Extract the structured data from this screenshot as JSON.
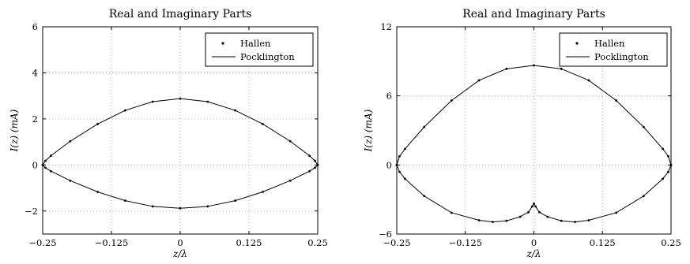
{
  "chart_data": [
    {
      "type": "line",
      "title": "Real and Imaginary Parts",
      "xlabel": "z/λ",
      "ylabel": "I(z)  (mA)",
      "xlim": [
        -0.25,
        0.25
      ],
      "ylim": [
        -3,
        6
      ],
      "xticks": [
        "−0.25",
        "−0.125",
        "0",
        "0.125",
        "0.25"
      ],
      "xtick_values": [
        -0.25,
        -0.125,
        0,
        0.125,
        0.25
      ],
      "yticks": [
        "−2",
        "0",
        "2",
        "4",
        "6"
      ],
      "ytick_values": [
        -2,
        0,
        2,
        4,
        6
      ],
      "grid": true,
      "legend_position": "top-right",
      "series": [
        {
          "name": "Hallen",
          "style": "dots",
          "parts": [
            {
              "x": [
                -0.25,
                -0.245,
                -0.235,
                -0.2,
                -0.15,
                -0.1,
                -0.05,
                0,
                0.05,
                0.1,
                0.15,
                0.2,
                0.235,
                0.245,
                0.25
              ],
              "y": [
                0,
                0.18,
                0.4,
                1.03,
                1.78,
                2.37,
                2.75,
                2.88,
                2.75,
                2.37,
                1.78,
                1.03,
                0.4,
                0.18,
                0
              ]
            },
            {
              "x": [
                -0.25,
                -0.245,
                -0.235,
                -0.2,
                -0.15,
                -0.1,
                -0.05,
                0,
                0.05,
                0.1,
                0.15,
                0.2,
                0.235,
                0.245,
                0.25
              ],
              "y": [
                0,
                -0.12,
                -0.27,
                -0.68,
                -1.17,
                -1.55,
                -1.8,
                -1.88,
                -1.8,
                -1.55,
                -1.17,
                -0.68,
                -0.27,
                -0.12,
                0
              ]
            }
          ]
        },
        {
          "name": "Pocklington",
          "style": "line",
          "parts": [
            {
              "x": [
                -0.25,
                -0.245,
                -0.235,
                -0.2,
                -0.15,
                -0.1,
                -0.05,
                0,
                0.05,
                0.1,
                0.15,
                0.2,
                0.235,
                0.245,
                0.25
              ],
              "y": [
                0,
                0.18,
                0.4,
                1.03,
                1.78,
                2.37,
                2.75,
                2.88,
                2.75,
                2.37,
                1.78,
                1.03,
                0.4,
                0.18,
                0
              ]
            },
            {
              "x": [
                -0.25,
                -0.245,
                -0.235,
                -0.2,
                -0.15,
                -0.1,
                -0.05,
                0,
                0.05,
                0.1,
                0.15,
                0.2,
                0.235,
                0.245,
                0.25
              ],
              "y": [
                0,
                -0.12,
                -0.27,
                -0.68,
                -1.17,
                -1.55,
                -1.8,
                -1.88,
                -1.8,
                -1.55,
                -1.17,
                -0.68,
                -0.27,
                -0.12,
                0
              ]
            }
          ]
        }
      ]
    },
    {
      "type": "line",
      "title": "Real and Imaginary Parts",
      "xlabel": "z/λ",
      "ylabel": "I(z)  (mA)",
      "xlim": [
        -0.25,
        0.25
      ],
      "ylim": [
        -6,
        12
      ],
      "xticks": [
        "−0.25",
        "−0.125",
        "0",
        "0.125",
        "0.25"
      ],
      "xtick_values": [
        -0.25,
        -0.125,
        0,
        0.125,
        0.25
      ],
      "yticks": [
        "−6",
        "0",
        "6",
        "12"
      ],
      "ytick_values": [
        -6,
        0,
        6,
        12
      ],
      "grid": true,
      "legend_position": "top-right",
      "series": [
        {
          "name": "Hallen",
          "style": "dots",
          "parts": [
            {
              "x": [
                -0.25,
                -0.245,
                -0.235,
                -0.2,
                -0.15,
                -0.1,
                -0.05,
                0,
                0.05,
                0.1,
                0.15,
                0.2,
                0.235,
                0.245,
                0.25
              ],
              "y": [
                0,
                0.75,
                1.4,
                3.3,
                5.6,
                7.35,
                8.35,
                8.65,
                8.35,
                7.35,
                5.6,
                3.3,
                1.4,
                0.75,
                0
              ]
            },
            {
              "x": [
                -0.25,
                -0.245,
                -0.235,
                -0.2,
                -0.15,
                -0.1,
                -0.075,
                -0.05,
                -0.025,
                -0.01,
                -0.003,
                0,
                0.003,
                0.01,
                0.025,
                0.05,
                0.075,
                0.1,
                0.15,
                0.2,
                0.235,
                0.245,
                0.25
              ],
              "y": [
                0,
                -0.6,
                -1.2,
                -2.7,
                -4.15,
                -4.8,
                -4.95,
                -4.85,
                -4.5,
                -4.1,
                -3.6,
                -3.35,
                -3.6,
                -4.1,
                -4.5,
                -4.85,
                -4.95,
                -4.8,
                -4.15,
                -2.7,
                -1.2,
                -0.6,
                0
              ]
            }
          ]
        },
        {
          "name": "Pocklington",
          "style": "line",
          "parts": [
            {
              "x": [
                -0.25,
                -0.245,
                -0.235,
                -0.2,
                -0.15,
                -0.1,
                -0.05,
                0,
                0.05,
                0.1,
                0.15,
                0.2,
                0.235,
                0.245,
                0.25
              ],
              "y": [
                0,
                0.75,
                1.4,
                3.3,
                5.6,
                7.35,
                8.35,
                8.65,
                8.35,
                7.35,
                5.6,
                3.3,
                1.4,
                0.75,
                0
              ]
            },
            {
              "x": [
                -0.25,
                -0.245,
                -0.235,
                -0.2,
                -0.15,
                -0.1,
                -0.075,
                -0.05,
                -0.025,
                -0.01,
                -0.003,
                0,
                0.003,
                0.01,
                0.025,
                0.05,
                0.075,
                0.1,
                0.15,
                0.2,
                0.235,
                0.245,
                0.25
              ],
              "y": [
                0,
                -0.6,
                -1.2,
                -2.7,
                -4.15,
                -4.8,
                -4.95,
                -4.85,
                -4.5,
                -4.1,
                -3.6,
                -3.35,
                -3.6,
                -4.1,
                -4.5,
                -4.85,
                -4.95,
                -4.8,
                -4.15,
                -2.7,
                -1.2,
                -0.6,
                0
              ]
            }
          ]
        }
      ]
    }
  ]
}
